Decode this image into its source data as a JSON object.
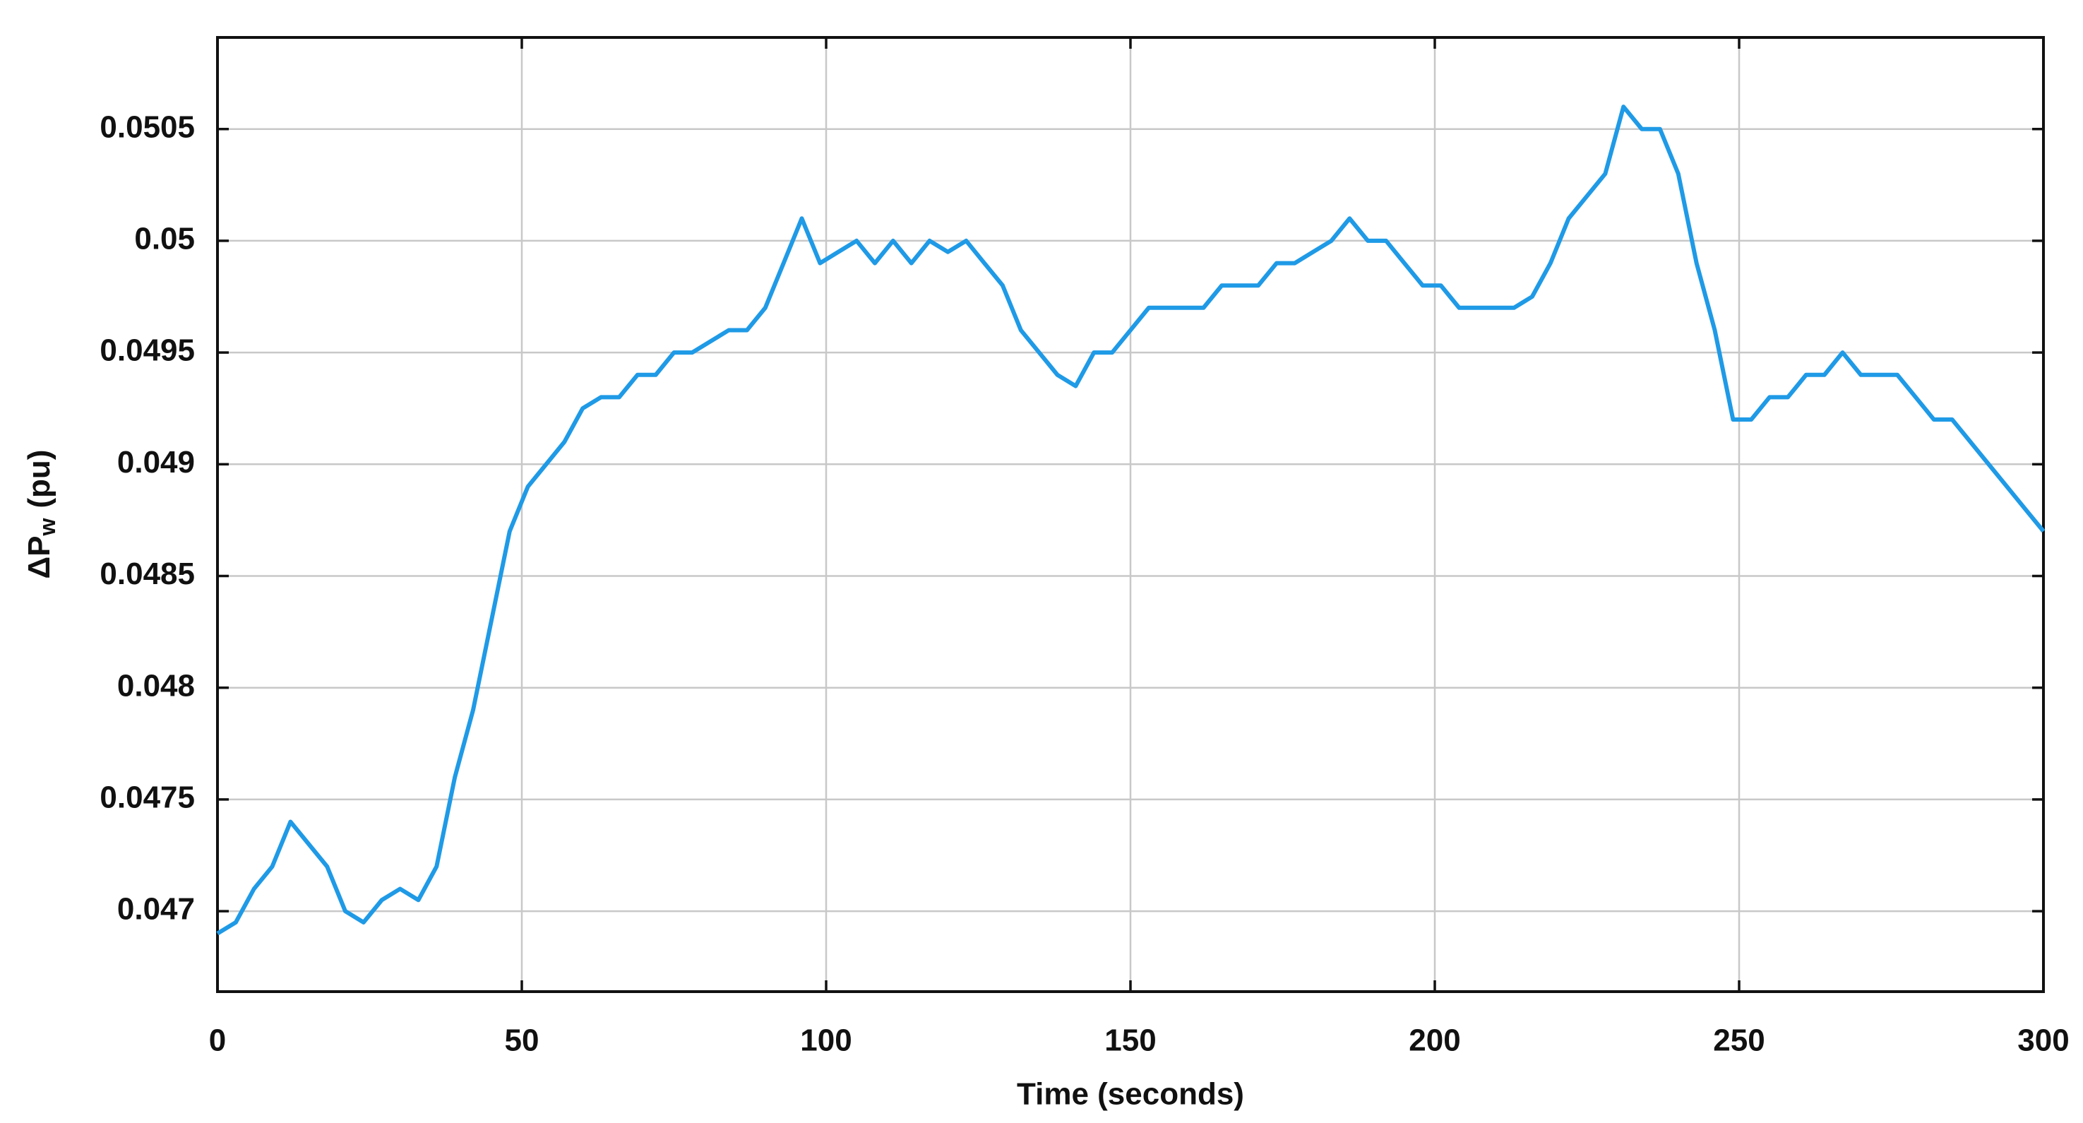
{
  "chart_data": {
    "type": "line",
    "xlabel": "Time (seconds)",
    "ylabel": "ΔP",
    "ylabel_subscript": "w",
    "ylabel_unit": "(pu)",
    "x": [
      0,
      3,
      6,
      9,
      12,
      15,
      18,
      21,
      24,
      27,
      30,
      33,
      36,
      39,
      42,
      45,
      48,
      51,
      54,
      57,
      60,
      63,
      66,
      69,
      72,
      75,
      78,
      81,
      84,
      87,
      90,
      93,
      96,
      99,
      102,
      105,
      108,
      111,
      114,
      117,
      120,
      123,
      126,
      129,
      132,
      135,
      138,
      141,
      144,
      147,
      150,
      153,
      156,
      159,
      162,
      165,
      168,
      171,
      174,
      177,
      180,
      183,
      186,
      189,
      192,
      195,
      198,
      201,
      204,
      207,
      210,
      213,
      216,
      219,
      222,
      225,
      228,
      231,
      234,
      237,
      240,
      243,
      246,
      249,
      252,
      255,
      258,
      261,
      264,
      267,
      270,
      273,
      276,
      279,
      282,
      285,
      288,
      291,
      294,
      297,
      300
    ],
    "series": [
      {
        "name": "ΔPw",
        "color": "#1f9ae6",
        "values": [
          0.0469,
          0.04695,
          0.0471,
          0.0472,
          0.0474,
          0.0473,
          0.0472,
          0.047,
          0.04695,
          0.04705,
          0.0471,
          0.04705,
          0.0472,
          0.0476,
          0.0479,
          0.0483,
          0.0487,
          0.0489,
          0.049,
          0.0491,
          0.04925,
          0.0493,
          0.0493,
          0.0494,
          0.0494,
          0.0495,
          0.0495,
          0.04955,
          0.0496,
          0.0496,
          0.0497,
          0.0499,
          0.0501,
          0.0499,
          0.04995,
          0.05,
          0.0499,
          0.05,
          0.0499,
          0.05,
          0.04995,
          0.05,
          0.0499,
          0.0498,
          0.0496,
          0.0495,
          0.0494,
          0.04935,
          0.0495,
          0.0495,
          0.0496,
          0.0497,
          0.0497,
          0.0497,
          0.0497,
          0.0498,
          0.0498,
          0.0498,
          0.0499,
          0.0499,
          0.04995,
          0.05,
          0.0501,
          0.05,
          0.05,
          0.0499,
          0.0498,
          0.0498,
          0.0497,
          0.0497,
          0.0497,
          0.0497,
          0.04975,
          0.0499,
          0.0501,
          0.0502,
          0.0503,
          0.0506,
          0.0505,
          0.0505,
          0.0503,
          0.0499,
          0.0496,
          0.0492,
          0.0492,
          0.0493,
          0.0493,
          0.0494,
          0.0494,
          0.0495,
          0.0494,
          0.0494,
          0.0494,
          0.0493,
          0.0492,
          0.0492,
          0.0491,
          0.049,
          0.0489,
          0.0488,
          0.0487
        ]
      }
    ],
    "xlim": [
      0,
      300
    ],
    "xticks": [
      0,
      50,
      100,
      150,
      200,
      250,
      300
    ],
    "ylim": [
      0.04664,
      0.05091
    ],
    "yticks": [
      0.047,
      0.0475,
      0.048,
      0.0485,
      0.049,
      0.0495,
      0.05,
      0.0505
    ],
    "grid": true
  }
}
